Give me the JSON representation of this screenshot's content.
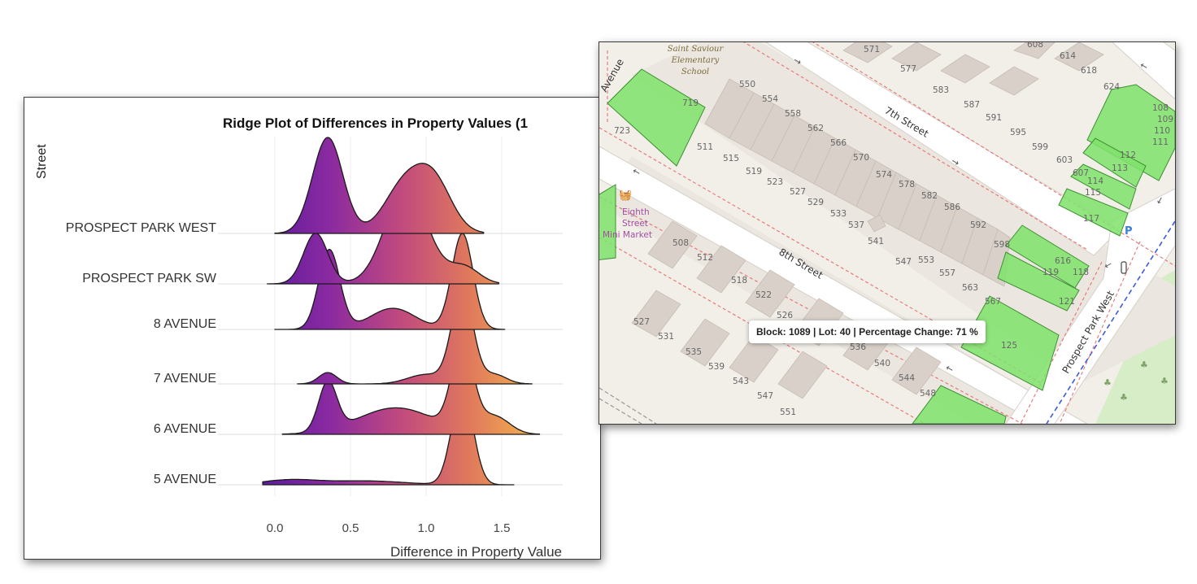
{
  "chart_data": {
    "type": "ridgeline",
    "title": "Ridge Plot of Differences in Property Values (1",
    "xlabel": "Difference in Property Value",
    "ylabel": "Street",
    "xlim": [
      -0.1,
      1.9
    ],
    "x_ticks": [
      "0.0",
      "0.5",
      "1.0",
      "1.5"
    ],
    "x_tick_values": [
      0.0,
      0.5,
      1.0,
      1.5
    ],
    "grid": true,
    "colormap": "plasma",
    "color_stops": [
      "#5b1a9e",
      "#8a2aa0",
      "#c0497f",
      "#e0795c",
      "#f4b54c"
    ],
    "series": [
      {
        "name": "PROSPECT PARK WEST",
        "range": [
          0.0,
          1.38
        ],
        "peaks": [
          [
            0.35,
            1.0,
            0.1
          ],
          [
            0.85,
            0.48,
            0.13
          ],
          [
            1.05,
            0.52,
            0.12
          ]
        ]
      },
      {
        "name": "PROSPECT PARK SW",
        "range": [
          -0.05,
          1.48
        ],
        "peaks": [
          [
            0.27,
            0.45,
            0.08
          ],
          [
            0.87,
            0.85,
            0.14
          ],
          [
            1.25,
            0.15,
            0.1
          ]
        ]
      },
      {
        "name": "8 AVENUE",
        "range": [
          0.0,
          1.52
        ],
        "peaks": [
          [
            0.36,
            0.83,
            0.07
          ],
          [
            0.78,
            0.22,
            0.15
          ],
          [
            1.24,
            1.0,
            0.07
          ]
        ]
      },
      {
        "name": "7 AVENUE",
        "range": [
          0.15,
          1.7
        ],
        "peaks": [
          [
            0.35,
            0.12,
            0.06
          ],
          [
            1.0,
            0.1,
            0.12
          ],
          [
            1.24,
            1.0,
            0.07
          ],
          [
            1.45,
            0.1,
            0.08
          ]
        ]
      },
      {
        "name": "6 AVENUE",
        "range": [
          0.05,
          1.75
        ],
        "peaks": [
          [
            0.35,
            0.55,
            0.06
          ],
          [
            0.8,
            0.3,
            0.25
          ],
          [
            1.24,
            1.0,
            0.07
          ],
          [
            1.45,
            0.2,
            0.1
          ]
        ]
      },
      {
        "name": "5 AVENUE",
        "range": [
          -0.08,
          1.58
        ],
        "peaks": [
          [
            0.1,
            0.05,
            0.18
          ],
          [
            0.6,
            0.04,
            0.25
          ],
          [
            1.24,
            1.0,
            0.07
          ]
        ]
      }
    ]
  },
  "map": {
    "school": [
      "Saint Saviour",
      "Elementary",
      "School"
    ],
    "market": [
      "Eighth",
      "Street",
      "Mini Market"
    ],
    "streets": {
      "seventh": "7th Street",
      "eighth": "8th Street",
      "park": "Prospect Park West",
      "avenue": "Avenue"
    },
    "lots_7th": [
      "571",
      "577",
      "583",
      "587",
      "591",
      "595",
      "599",
      "603",
      "607",
      "608",
      "614",
      "618",
      "624",
      "108",
      "109",
      "110",
      "111",
      "112",
      "113",
      "114",
      "115",
      "117"
    ],
    "lots_middle": [
      "550",
      "554",
      "558",
      "562",
      "566",
      "570",
      "574",
      "578",
      "582",
      "586",
      "592",
      "598",
      "511",
      "515",
      "519",
      "523",
      "527",
      "529",
      "533",
      "537",
      "541",
      "547",
      "553",
      "557",
      "563",
      "567",
      "719",
      "723",
      "616",
      "119",
      "118",
      "121"
    ],
    "lots_8th": [
      "508",
      "512",
      "518",
      "522",
      "526",
      "527",
      "531",
      "535",
      "539",
      "543",
      "547",
      "551",
      "536",
      "540",
      "544",
      "548",
      "125"
    ],
    "tooltip": "Block: 1089 | Lot: 40 | Percentage Change: 71 %",
    "colors": {
      "land": "#f2efe9",
      "building": "#d9d0c9",
      "road": "#ffffff",
      "parcel": "#7fe26a",
      "parcel_border": "#3f8f33",
      "boundary": "#e57373",
      "park": "#d6edc8",
      "path": "#3b5bdb"
    }
  }
}
